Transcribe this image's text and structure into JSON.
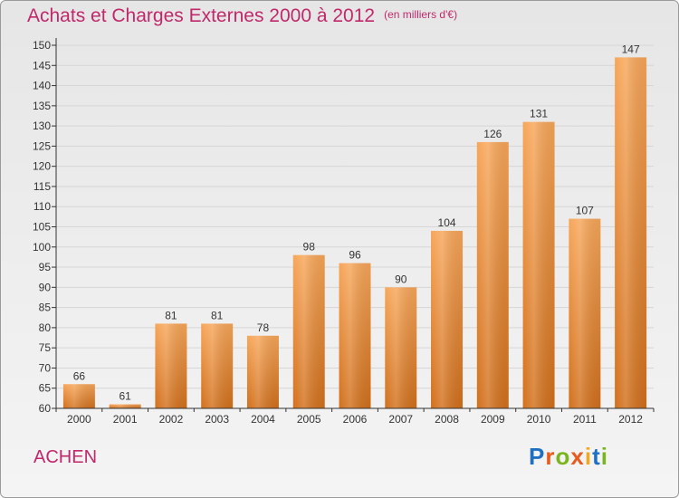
{
  "page": {
    "title": "Achats et Charges Externes 2000 à 2012",
    "subtitle": "(en milliers d'€)",
    "place": "ACHEN",
    "logo_text": "Proxiti"
  },
  "colors": {
    "title": "#c0286b",
    "bar_top": "#f7a659",
    "bar_bottom": "#d2701c",
    "axis": "#333333"
  },
  "chart_data": {
    "type": "bar",
    "title": "Achats et Charges Externes 2000 à 2012",
    "subtitle": "(en milliers d'€)",
    "categories": [
      "2000",
      "2001",
      "2002",
      "2003",
      "2004",
      "2005",
      "2006",
      "2007",
      "2008",
      "2009",
      "2010",
      "2011",
      "2012"
    ],
    "values": [
      66,
      61,
      81,
      81,
      78,
      98,
      96,
      90,
      104,
      126,
      131,
      107,
      147
    ],
    "ylim": [
      60,
      150
    ],
    "yticks": [
      60,
      65,
      70,
      75,
      80,
      85,
      90,
      95,
      100,
      105,
      110,
      115,
      120,
      125,
      130,
      135,
      140,
      145,
      150
    ],
    "grid": true,
    "xlabel": "",
    "ylabel": ""
  }
}
